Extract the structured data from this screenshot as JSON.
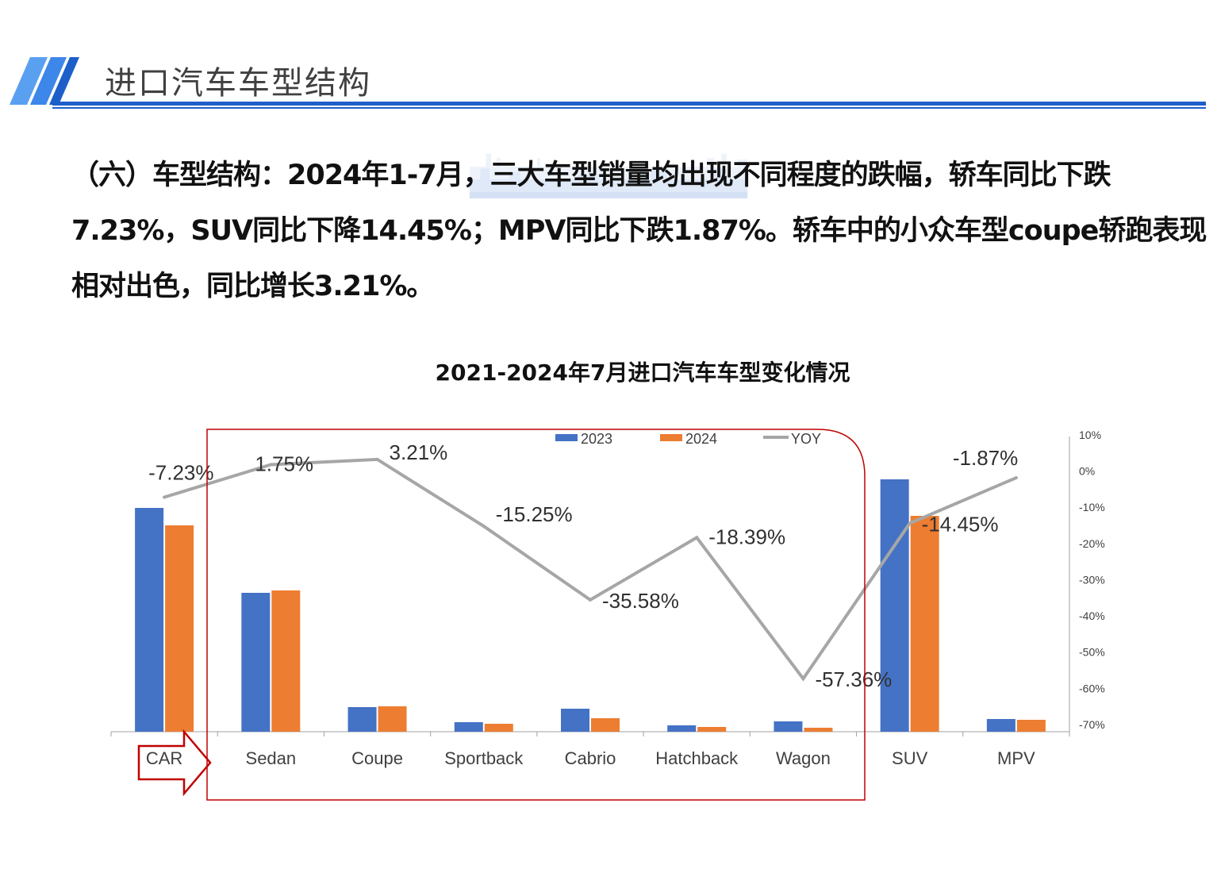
{
  "header": {
    "title": "进口汽车车型结构"
  },
  "paragraph": "（六）车型结构：2024年1-7月，三大车型销量均出现不同程度的跌幅，轿车同比下跌7.23%，SUV同比下降14.45%；MPV同比下跌1.87%。轿车中的小众车型coupe轿跑表现相对出色，同比增长3.21%。",
  "colors": {
    "accent": "#1d5fc9",
    "s2023": "#4472c4",
    "s2024": "#ed7d31",
    "yoy": "#a6a6a6",
    "annotation": "#c00000"
  },
  "chart_data": {
    "type": "bar+line",
    "title": "2021-2024年7月进口汽车车型变化情况",
    "categories": [
      "CAR",
      "Sedan",
      "Coupe",
      "Sportback",
      "Cabrio",
      "Hatchback",
      "Wagon",
      "SUV",
      "MPV"
    ],
    "series": [
      {
        "name": "2023",
        "type": "bar",
        "values": [
          282,
          175,
          31,
          12,
          29,
          8,
          13,
          318,
          16
        ]
      },
      {
        "name": "2024",
        "type": "bar",
        "values": [
          260,
          178,
          32,
          10,
          17,
          6,
          5,
          272,
          15
        ]
      },
      {
        "name": "YOY",
        "type": "line",
        "axis": "right",
        "values": [
          -7.23,
          1.75,
          3.21,
          -15.25,
          -35.58,
          -18.39,
          -57.36,
          -14.45,
          -1.87
        ],
        "labels": [
          "-7.23%",
          "1.75%",
          "3.21%",
          "-15.25%",
          "-35.58%",
          "-18.39%",
          "-57.36%",
          "-14.45%",
          "-1.87%"
        ]
      }
    ],
    "right_axis": {
      "ylim": [
        -70,
        10
      ],
      "ticks": [
        "10%",
        "0%",
        "-10%",
        "-20%",
        "-30%",
        "-40%",
        "-50%",
        "-60%",
        "-70%"
      ]
    },
    "left_axis_visible": false,
    "legend": "top-center",
    "grid": false
  }
}
